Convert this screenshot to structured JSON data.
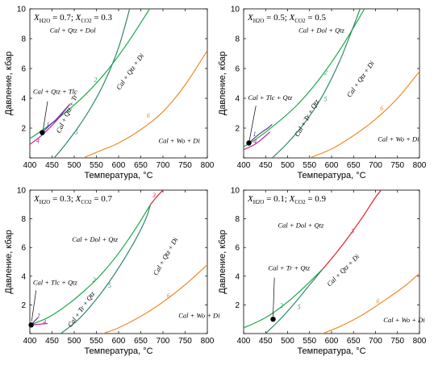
{
  "colors": {
    "green": "#1aab4b",
    "teal": "#2e8a6a",
    "orange": "#f08a24",
    "red": "#e0222b",
    "magenta": "#c0209a",
    "purple": "#5a3a93",
    "black": "#000000"
  },
  "chart_data": [
    {
      "type": "line",
      "header": "X_H2O = 0.7; X_CO2 = 0.3",
      "header_parts": {
        "a": "H",
        "a_sub": "2",
        "a_sub2": "O",
        "a_val": " = 0.7; ",
        "b": "CO",
        "b_sub": "2",
        "b_val": " = 0.3"
      },
      "xlabel": "Температура, °C",
      "ylabel": "Давление, кбар",
      "xlim": [
        400,
        800
      ],
      "ylim": [
        0,
        10
      ],
      "xticks": [
        400,
        450,
        500,
        550,
        600,
        650,
        700,
        750,
        800
      ],
      "yticks": [
        0,
        2,
        4,
        6,
        8,
        10
      ],
      "series": [
        {
          "id": "2",
          "color": "green",
          "x": [
            400,
            430,
            470,
            520,
            570,
            620,
            670
          ],
          "y": [
            1.3,
            1.9,
            2.8,
            4.1,
            5.7,
            7.7,
            10.0
          ]
        },
        {
          "id": "5",
          "color": "teal",
          "x": [
            455,
            480,
            510,
            540,
            570,
            600,
            625
          ],
          "y": [
            0.0,
            0.9,
            2.1,
            3.5,
            5.2,
            7.4,
            10.0
          ]
        },
        {
          "id": "6",
          "color": "orange",
          "x": [
            520,
            560,
            600,
            650,
            700,
            750,
            800
          ],
          "y": [
            0.0,
            0.5,
            1.0,
            1.9,
            3.1,
            4.9,
            7.2
          ]
        },
        {
          "id": "4",
          "color": "magenta",
          "x": [
            400,
            430,
            460,
            490
          ],
          "y": [
            0.9,
            1.6,
            2.5,
            3.6
          ]
        },
        {
          "id": "1",
          "color": "purple",
          "x": [
            428,
            445,
            460,
            475,
            490
          ],
          "y": [
            1.7,
            2.2,
            2.6,
            3.1,
            3.6
          ]
        }
      ],
      "curve_labels": [
        {
          "text": "2",
          "series": "2",
          "x": 548,
          "y": 5.1
        },
        {
          "text": "5",
          "series": "5",
          "x": 505,
          "y": 1.6
        },
        {
          "text": "6",
          "series": "6",
          "x": 667,
          "y": 2.7
        },
        {
          "text": "4",
          "series": "4",
          "x": 418,
          "y": 1.0
        },
        {
          "text": "1",
          "series": "1",
          "x": 441,
          "y": 2.1
        }
      ],
      "point": {
        "x": 428,
        "y": 1.7
      },
      "field_labels": [
        {
          "text": "Cal + Qtz + Dol",
          "x": 445,
          "y": 8.4,
          "rot": 0
        },
        {
          "text": "Cal + Qtz + Tlc",
          "x": 407,
          "y": 4.3,
          "rot": 0
        },
        {
          "text": "Cal + Qtz + Tr",
          "x": 488,
          "y": 2.9,
          "rot": -65
        },
        {
          "text": "Cal + Qtz + Di",
          "x": 630,
          "y": 5.7,
          "rot": -55
        },
        {
          "text": "Cal + Wo + Di",
          "x": 690,
          "y": 1.0,
          "rot": 0
        }
      ],
      "pointer": {
        "from": [
          440,
          3.8
        ],
        "to": [
          430,
          1.9
        ]
      }
    },
    {
      "type": "line",
      "header": "X_H2O = 0.5; X_CO2 = 0.5",
      "header_parts": {
        "a": "H",
        "a_sub": "2",
        "a_sub2": "O",
        "a_val": " = 0.5; ",
        "b": "CO",
        "b_sub": "2",
        "b_val": " = 0.5"
      },
      "xlabel": "Температура, °C",
      "ylabel": "Давление, кбар",
      "xlim": [
        400,
        800
      ],
      "ylim": [
        0,
        10
      ],
      "xticks": [
        400,
        450,
        500,
        550,
        600,
        650,
        700,
        750,
        800
      ],
      "yticks": [
        0,
        2,
        4,
        6,
        8,
        10
      ],
      "series": [
        {
          "id": "2",
          "color": "green",
          "x": [
            400,
            430,
            470,
            520,
            570,
            620,
            675
          ],
          "y": [
            0.75,
            1.3,
            2.2,
            3.5,
            5.2,
            7.3,
            10.0
          ]
        },
        {
          "id": "5",
          "color": "teal",
          "x": [
            465,
            500,
            540,
            580,
            620,
            665
          ],
          "y": [
            0.0,
            1.0,
            2.4,
            4.2,
            6.6,
            10.0
          ]
        },
        {
          "id": "6",
          "color": "orange",
          "x": [
            550,
            600,
            650,
            700,
            750,
            800
          ],
          "y": [
            0.0,
            0.6,
            1.5,
            2.6,
            4.0,
            5.8
          ]
        },
        {
          "id": "4",
          "color": "magenta",
          "x": [
            400,
            425,
            445,
            460
          ],
          "y": [
            0.55,
            0.9,
            1.35,
            1.75
          ]
        },
        {
          "id": "1",
          "color": "purple",
          "x": [
            412,
            425,
            440,
            455,
            465
          ],
          "y": [
            1.0,
            1.35,
            1.7,
            2.0,
            2.25
          ]
        }
      ],
      "curve_labels": [
        {
          "text": "2",
          "series": "2",
          "x": 587,
          "y": 5.6
        },
        {
          "text": "5",
          "series": "5",
          "x": 586,
          "y": 3.8
        },
        {
          "text": "6",
          "series": "6",
          "x": 714,
          "y": 3.2
        },
        {
          "text": "4",
          "series": "4",
          "x": 426,
          "y": 0.95
        },
        {
          "text": "1",
          "series": "1",
          "x": 425,
          "y": 1.45
        }
      ],
      "point": {
        "x": 412,
        "y": 1.0
      },
      "field_labels": [
        {
          "text": "Cal + Dol + Qtz",
          "x": 525,
          "y": 8.4,
          "rot": 0
        },
        {
          "text": "Cal + Tlc + Qtz",
          "x": 410,
          "y": 3.9,
          "rot": 0
        },
        {
          "text": "Cal + Tr + Qtz",
          "x": 548,
          "y": 2.6,
          "rot": -60
        },
        {
          "text": "Cal + Qtz + Di",
          "x": 670,
          "y": 5.2,
          "rot": -55
        },
        {
          "text": "Cal + Wo + Di",
          "x": 705,
          "y": 1.1,
          "rot": 0
        }
      ],
      "pointer": {
        "from": [
          428,
          3.5
        ],
        "to": [
          413,
          1.15
        ]
      }
    },
    {
      "type": "line",
      "header": "X_H2O = 0.3; X_CO2 = 0.7",
      "header_parts": {
        "a": "H",
        "a_sub": "2",
        "a_sub2": "O",
        "a_val": " = 0.3; ",
        "b": "CO",
        "b_sub": "2",
        "b_val": " = 0.7"
      },
      "xlabel": "Температура, °C",
      "ylabel": "Давление, кбар",
      "xlim": [
        400,
        800
      ],
      "ylim": [
        0,
        10
      ],
      "xticks": [
        400,
        450,
        500,
        550,
        600,
        650,
        700,
        750,
        800
      ],
      "yticks": [
        0,
        2,
        4,
        6,
        8,
        10
      ],
      "series": [
        {
          "id": "2",
          "color": "green",
          "x": [
            400,
            440,
            480,
            520,
            560,
            600,
            640,
            672
          ],
          "y": [
            0.6,
            1.1,
            1.9,
            2.9,
            4.1,
            5.6,
            7.4,
            9.0
          ]
        },
        {
          "id": "5",
          "color": "teal",
          "x": [
            470,
            510,
            550,
            590,
            630,
            660,
            672
          ],
          "y": [
            0.0,
            1.0,
            2.4,
            4.1,
            6.1,
            7.9,
            9.0
          ]
        },
        {
          "id": "3",
          "color": "red",
          "x": [
            672,
            685,
            700
          ],
          "y": [
            9.0,
            9.5,
            10.0
          ]
        },
        {
          "id": "6",
          "color": "orange",
          "x": [
            565,
            600,
            650,
            700,
            750,
            800
          ],
          "y": [
            0.0,
            0.4,
            1.2,
            2.2,
            3.4,
            4.8
          ]
        },
        {
          "id": "4",
          "color": "magenta",
          "x": [
            400,
            420,
            440
          ],
          "y": [
            0.6,
            0.65,
            0.7
          ]
        },
        {
          "id": "1",
          "color": "purple",
          "x": [
            403,
            410,
            418
          ],
          "y": [
            0.6,
            0.85,
            1.1
          ]
        }
      ],
      "curve_labels": [
        {
          "text": "3",
          "series": "3",
          "x": 680,
          "y": 9.5
        },
        {
          "text": "2",
          "series": "2",
          "x": 545,
          "y": 3.6
        },
        {
          "text": "5",
          "series": "5",
          "x": 580,
          "y": 3.2
        },
        {
          "text": "6",
          "series": "6",
          "x": 712,
          "y": 2.5
        },
        {
          "text": "4",
          "series": "4",
          "x": 433,
          "y": 0.65
        },
        {
          "text": "1",
          "series": "1",
          "x": 420,
          "y": 1.1
        }
      ],
      "point": {
        "x": 403,
        "y": 0.6
      },
      "field_labels": [
        {
          "text": "Cal + Dol + Qtz",
          "x": 495,
          "y": 6.4,
          "rot": 0
        },
        {
          "text": "Cal + Tlc + Qtz",
          "x": 407,
          "y": 3.4,
          "rot": 0
        },
        {
          "text": "Cal + Tr + Qtz",
          "x": 520,
          "y": 1.6,
          "rot": -55
        },
        {
          "text": "Cal + Qtz + Di",
          "x": 710,
          "y": 5.3,
          "rot": -60
        },
        {
          "text": "Cal + Wo + Di",
          "x": 735,
          "y": 1.1,
          "rot": 0
        }
      ],
      "pointer": {
        "from": [
          414,
          3.0
        ],
        "to": [
          404,
          0.85
        ]
      }
    },
    {
      "type": "line",
      "header": "X_H2O = 0.1; X_CO2 = 0.9",
      "header_parts": {
        "a": "H",
        "a_sub": "2",
        "a_sub2": "O",
        "a_val": " = 0.1; ",
        "b": "CO",
        "b_sub": "2",
        "b_val": " = 0.9"
      },
      "xlabel": "Температура, °C",
      "ylabel": "Давление, кбар",
      "xlim": [
        400,
        800
      ],
      "ylim": [
        0,
        10
      ],
      "xticks": [
        400,
        450,
        500,
        550,
        600,
        650,
        700,
        750,
        800
      ],
      "yticks": [
        0,
        2,
        4,
        6,
        8,
        10
      ],
      "series": [
        {
          "id": "2",
          "color": "green",
          "x": [
            400,
            430,
            460,
            500,
            540,
            580
          ],
          "y": [
            0.4,
            0.8,
            1.3,
            2.2,
            3.3,
            4.5
          ]
        },
        {
          "id": "5",
          "color": "teal",
          "x": [
            450,
            480,
            510,
            545,
            580
          ],
          "y": [
            0.0,
            0.9,
            1.9,
            3.2,
            4.5
          ]
        },
        {
          "id": "3",
          "color": "red",
          "x": [
            580,
            610,
            640,
            670,
            700,
            713
          ],
          "y": [
            4.5,
            5.6,
            6.8,
            8.1,
            9.5,
            10.0
          ]
        },
        {
          "id": "6",
          "color": "orange",
          "x": [
            580,
            620,
            670,
            720,
            770,
            800
          ],
          "y": [
            0.0,
            0.5,
            1.3,
            2.3,
            3.4,
            4.2
          ]
        }
      ],
      "curve_labels": [
        {
          "text": "3",
          "series": "3",
          "x": 648,
          "y": 7.0
        },
        {
          "text": "2",
          "series": "2",
          "x": 486,
          "y": 1.8
        },
        {
          "text": "5",
          "series": "5",
          "x": 526,
          "y": 1.7
        },
        {
          "text": "6",
          "series": "6",
          "x": 705,
          "y": 2.1
        }
      ],
      "point": {
        "x": 467,
        "y": 1.0
      },
      "field_labels": [
        {
          "text": "Cal + Dol + Qtz",
          "x": 478,
          "y": 7.4,
          "rot": 0
        },
        {
          "text": "Cal + Tr + Qtz",
          "x": 456,
          "y": 4.4,
          "rot": 0
        },
        {
          "text": "Cal + Qtz + Di",
          "x": 630,
          "y": 4.3,
          "rot": -45
        },
        {
          "text": "Cal + Wo + Di",
          "x": 718,
          "y": 0.8,
          "rot": 0
        }
      ],
      "pointer": {
        "from": [
          470,
          3.9
        ],
        "to": [
          467,
          1.2
        ]
      }
    }
  ]
}
